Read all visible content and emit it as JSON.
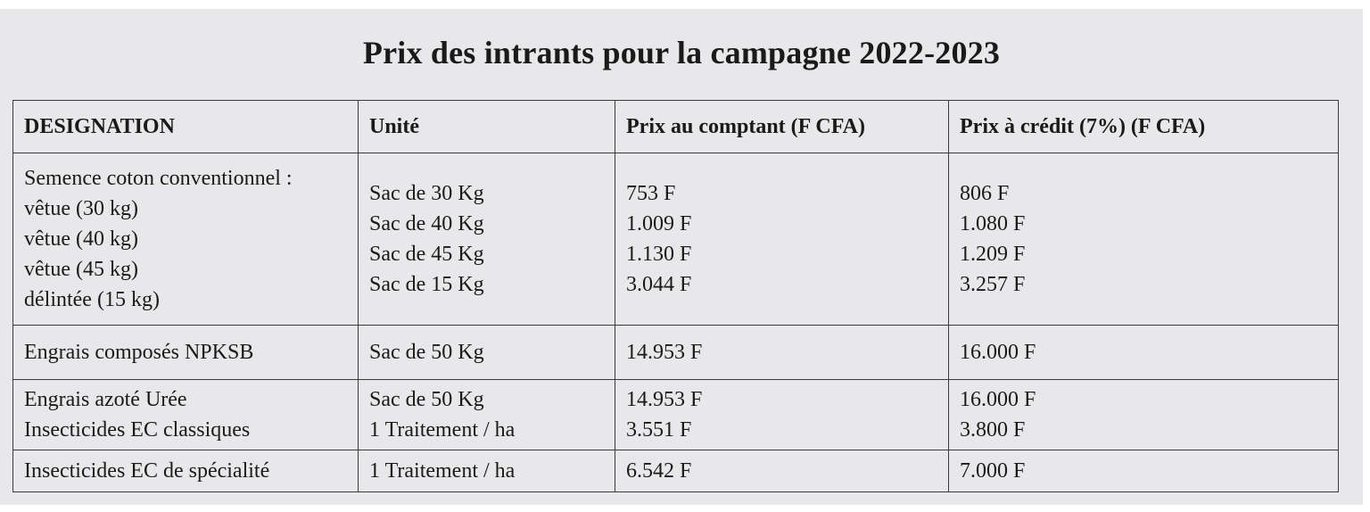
{
  "title": "Prix des intrants pour la campagne 2022-2023",
  "table": {
    "headers": {
      "designation": "DESIGNATION",
      "unite": "Unité",
      "prix_comptant": "Prix au comptant  (F CFA)",
      "prix_credit": "Prix à crédit (7%) (F CFA)"
    },
    "rows": [
      {
        "designation": [
          "Semence coton conventionnel :",
          "vêtue (30 kg)",
          "vêtue (40 kg)",
          "vêtue (45 kg)",
          "délintée (15 kg)"
        ],
        "unite": [
          "Sac de 30 Kg",
          "Sac de 40 Kg",
          "Sac de 45 Kg",
          "Sac de 15 Kg"
        ],
        "prix_comptant": [
          "753 F",
          "1.009 F",
          "1.130 F",
          "3.044 F"
        ],
        "prix_credit": [
          "806 F",
          "1.080 F",
          "1.209 F",
          "3.257 F"
        ]
      },
      {
        "designation": [
          "Engrais composés NPKSB"
        ],
        "unite": [
          "Sac de 50 Kg"
        ],
        "prix_comptant": [
          "14.953 F"
        ],
        "prix_credit": [
          "16.000 F"
        ]
      },
      {
        "designation": [
          "Engrais azoté Urée",
          "Insecticides EC classiques"
        ],
        "unite": [
          "Sac de 50 Kg",
          "1 Traitement / ha"
        ],
        "prix_comptant": [
          "14.953 F",
          "3.551 F"
        ],
        "prix_credit": [
          "16.000 F",
          "3.800 F"
        ]
      },
      {
        "designation": [
          "Insecticides EC de spécialité"
        ],
        "unite": [
          "1 Traitement / ha"
        ],
        "prix_comptant": [
          "6.542 F"
        ],
        "prix_credit": [
          "7.000 F"
        ]
      }
    ]
  }
}
